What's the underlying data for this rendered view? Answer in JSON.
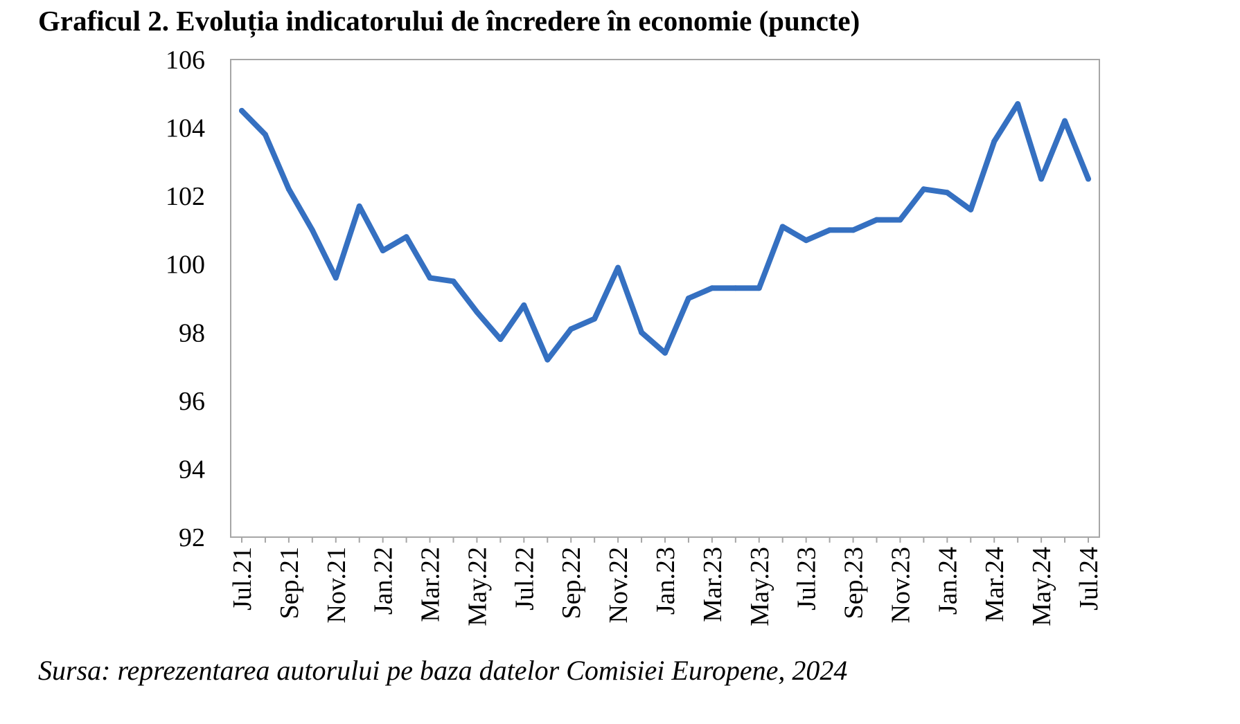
{
  "chart_data": {
    "type": "line",
    "title": "Graficul 2. Evoluția indicatorului de încredere în economie (puncte)",
    "source": "Sursa: reprezentarea autorului pe baza datelor Comisiei Europene, 2024",
    "xlabel": "",
    "ylabel": "",
    "ylim": [
      92,
      106
    ],
    "yticks": [
      92,
      94,
      96,
      98,
      100,
      102,
      104,
      106
    ],
    "grid": false,
    "legend": "none",
    "x": [
      "Jul.21",
      "Aug.21",
      "Sep.21",
      "Oct.21",
      "Nov.21",
      "Dec.21",
      "Jan.22",
      "Feb.22",
      "Mar.22",
      "Apr.22",
      "May.22",
      "Jun.22",
      "Jul.22",
      "Aug.22",
      "Sep.22",
      "Oct.22",
      "Nov.22",
      "Dec.22",
      "Jan.23",
      "Feb.23",
      "Mar.23",
      "Apr.23",
      "May.23",
      "Jun.23",
      "Jul.23",
      "Aug.23",
      "Sep.23",
      "Oct.23",
      "Nov.23",
      "Dec.23",
      "Jan.24",
      "Feb.24",
      "Mar.24",
      "Apr.24",
      "May.24",
      "Jun.24",
      "Jul.24"
    ],
    "x_tick_labels": [
      "Jul.21",
      "Sep.21",
      "Nov.21",
      "Jan.22",
      "Mar.22",
      "May.22",
      "Jul.22",
      "Sep.22",
      "Nov.22",
      "Jan.23",
      "Mar.23",
      "May.23",
      "Jul.23",
      "Sep.23",
      "Nov.23",
      "Jan.24",
      "Mar.24",
      "May.24",
      "Jul.24"
    ],
    "series": [
      {
        "values": [
          104.5,
          103.8,
          102.2,
          101.0,
          99.6,
          101.7,
          100.4,
          100.8,
          99.6,
          99.5,
          98.6,
          97.8,
          98.8,
          97.2,
          98.1,
          98.4,
          99.9,
          98.0,
          97.4,
          99.0,
          99.3,
          99.3,
          99.3,
          101.1,
          100.7,
          101.0,
          101.0,
          101.3,
          101.3,
          102.2,
          102.1,
          101.6,
          103.6,
          104.7,
          102.5,
          104.2,
          102.5
        ],
        "color": "#3570C1"
      }
    ]
  }
}
